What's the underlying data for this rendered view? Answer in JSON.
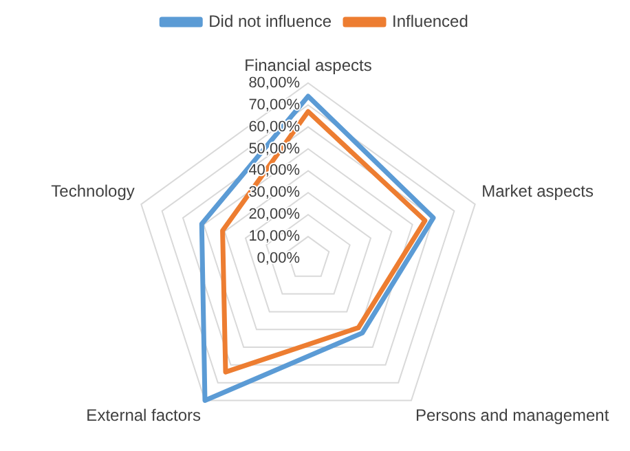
{
  "chart_data": {
    "type": "radar",
    "categories": [
      "Financial aspects",
      "Market aspects",
      "Persons and management",
      "External factors",
      "Technology"
    ],
    "series": [
      {
        "name": "Did not influence",
        "color": "#5b9bd5",
        "values": [
          74,
          60,
          42,
          80,
          51
        ]
      },
      {
        "name": "Influenced",
        "color": "#ed7d31",
        "values": [
          67,
          56,
          39,
          64,
          41
        ]
      }
    ],
    "ylim": [
      0,
      80
    ],
    "yticks": [
      {
        "value": 0,
        "label": "0,00%"
      },
      {
        "value": 10,
        "label": "10,00%"
      },
      {
        "value": 20,
        "label": "20,00%"
      },
      {
        "value": 30,
        "label": "30,00%"
      },
      {
        "value": 40,
        "label": "40,00%"
      },
      {
        "value": 50,
        "label": "50,00%"
      },
      {
        "value": 60,
        "label": "60,00%"
      },
      {
        "value": 70,
        "label": "70,00%"
      },
      {
        "value": 80,
        "label": "80,00%"
      }
    ],
    "grid": true,
    "legend": "top",
    "marker": "none"
  }
}
